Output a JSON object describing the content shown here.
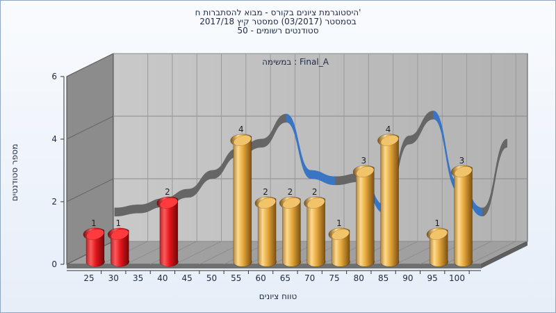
{
  "window": {
    "title_line1": "היסטוגרמת ציונים בקורס - מבוא להסתברות ח'",
    "title_line2": "בסמסטר (03/2017) סמסטר קיץ 2017/18",
    "title_line3": "סטודנטים רשומים - 50"
  },
  "chart_data": {
    "type": "bar",
    "subtitle": "במשימה : Final_A",
    "xlabel": "טווח ציונים",
    "ylabel": "מספר סטודנטים",
    "x_ticks": [
      "25",
      "30",
      "35",
      "40",
      "45",
      "50",
      "55",
      "60",
      "65",
      "70",
      "75",
      "80",
      "85",
      "90",
      "95",
      "100"
    ],
    "y_ticks": [
      "0",
      "2",
      "4",
      "6"
    ],
    "ylim": [
      0,
      6
    ],
    "bars": [
      {
        "x": 25,
        "value": 1,
        "label": "1",
        "color": "red"
      },
      {
        "x": 30,
        "value": 1,
        "label": "1",
        "color": "red"
      },
      {
        "x": 40,
        "value": 2,
        "label": "2",
        "color": "red"
      },
      {
        "x": 55,
        "value": 4,
        "label": "4",
        "color": "orange"
      },
      {
        "x": 60,
        "value": 2,
        "label": "2",
        "color": "orange"
      },
      {
        "x": 65,
        "value": 2,
        "label": "2",
        "color": "orange"
      },
      {
        "x": 70,
        "value": 2,
        "label": "2",
        "color": "orange"
      },
      {
        "x": 75,
        "value": 1,
        "label": "1",
        "color": "orange"
      },
      {
        "x": 80,
        "value": 3,
        "label": "3",
        "color": "orange"
      },
      {
        "x": 85,
        "value": 4,
        "label": "4",
        "color": "orange"
      },
      {
        "x": 95,
        "value": 1,
        "label": "1",
        "color": "orange"
      },
      {
        "x": 100,
        "value": 3,
        "label": "3",
        "color": "orange"
      }
    ],
    "trend": [
      {
        "x": 25,
        "value": 1.4
      },
      {
        "x": 30,
        "value": 1.5
      },
      {
        "x": 35,
        "value": 1.7
      },
      {
        "x": 40,
        "value": 2.0
      },
      {
        "x": 45,
        "value": 2.6
      },
      {
        "x": 50,
        "value": 3.3
      },
      {
        "x": 55,
        "value": 3.6
      },
      {
        "x": 60,
        "value": 4.4
      },
      {
        "x": 65,
        "value": 2.6
      },
      {
        "x": 70,
        "value": 2.4
      },
      {
        "x": 75,
        "value": 2.5
      },
      {
        "x": 80,
        "value": 1.5
      },
      {
        "x": 85,
        "value": 3.7
      },
      {
        "x": 90,
        "value": 4.5
      },
      {
        "x": 95,
        "value": 2.2
      },
      {
        "x": 100,
        "value": 1.4
      },
      {
        "x": 105,
        "value": 3.6
      }
    ],
    "colors": {
      "red": "#e0161b",
      "orange": "#e3a63b",
      "trend_front": "#3a75c4",
      "trend_back": "#666666",
      "back_wall": "#b9b9b9",
      "side_wall": "#8c8c8c",
      "floor": "#a0a0a0"
    },
    "grid": true
  }
}
